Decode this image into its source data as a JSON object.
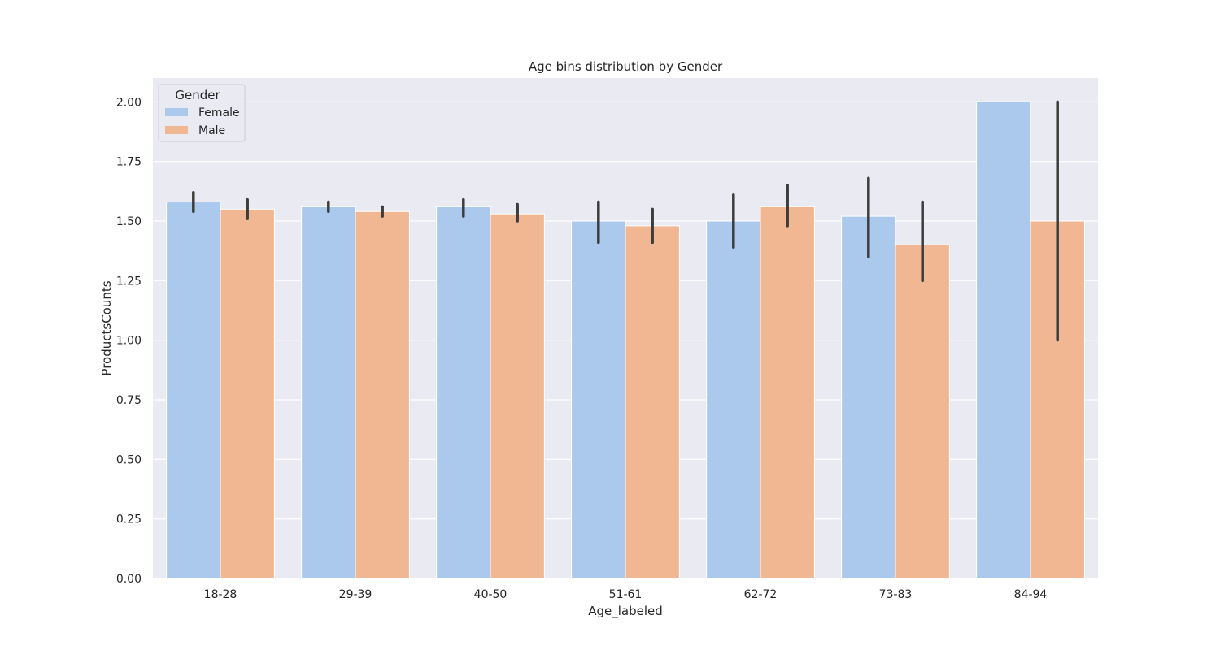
{
  "chart_data": {
    "type": "bar",
    "title": "Age bins distribution by Gender",
    "xlabel": "Age_labeled",
    "ylabel": "ProductsCounts",
    "categories": [
      "18-28",
      "29-39",
      "40-50",
      "51-61",
      "62-72",
      "73-83",
      "84-94"
    ],
    "ylim": [
      0,
      2.1
    ],
    "yticks": [
      "0.00",
      "0.25",
      "0.50",
      "0.75",
      "1.00",
      "1.25",
      "1.50",
      "1.75",
      "2.00"
    ],
    "grid": true,
    "legend": {
      "title": "Gender",
      "placement": "top-left"
    },
    "series": [
      {
        "name": "Female",
        "color": "#abc9ed",
        "values": [
          1.58,
          1.56,
          1.56,
          1.5,
          1.5,
          1.52,
          2.0
        ],
        "error_low": [
          1.54,
          1.54,
          1.52,
          1.41,
          1.39,
          1.35,
          2.0
        ],
        "error_high": [
          1.62,
          1.58,
          1.59,
          1.58,
          1.61,
          1.68,
          2.0
        ]
      },
      {
        "name": "Male",
        "color": "#f0b792",
        "values": [
          1.55,
          1.54,
          1.53,
          1.48,
          1.56,
          1.4,
          1.5
        ],
        "error_low": [
          1.51,
          1.52,
          1.5,
          1.41,
          1.48,
          1.25,
          1.0
        ],
        "error_high": [
          1.59,
          1.56,
          1.57,
          1.55,
          1.65,
          1.58,
          2.0
        ]
      }
    ],
    "colors": {
      "plot_background": "#eaeaf2",
      "gridline": "#ffffff",
      "error_bar": "#3d3d3d"
    }
  }
}
